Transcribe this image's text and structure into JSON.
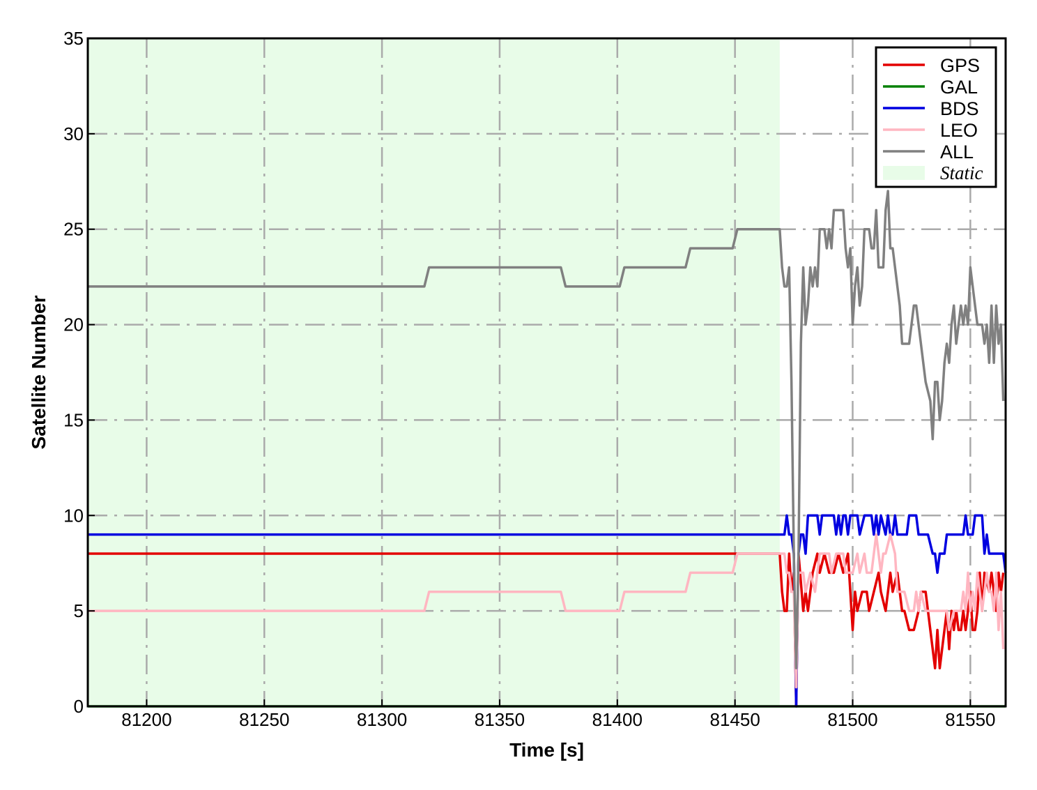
{
  "chart_data": {
    "type": "line",
    "title": "",
    "xlabel": "Time [s]",
    "ylabel": "Satellite Number",
    "xlim": [
      81175,
      81565
    ],
    "ylim": [
      0,
      35
    ],
    "xticks": [
      81200,
      81250,
      81300,
      81350,
      81400,
      81450,
      81500,
      81550
    ],
    "yticks": [
      0,
      5,
      10,
      15,
      20,
      25,
      30,
      35
    ],
    "grid": true,
    "legend_position": "top-right",
    "static_region": {
      "label": "Static",
      "x_start": 81175,
      "x_end": 81469,
      "color": "#e8fce8"
    },
    "series": [
      {
        "name": "GPS",
        "color": "#e30000",
        "points": [
          [
            81175,
            8
          ],
          [
            81469,
            8
          ],
          [
            81470,
            6
          ],
          [
            81471,
            5
          ],
          [
            81472,
            5
          ],
          [
            81473,
            8
          ],
          [
            81474,
            6
          ],
          [
            81475,
            7
          ],
          [
            81476,
            0
          ],
          [
            81477,
            8
          ],
          [
            81479,
            5
          ],
          [
            81480,
            6
          ],
          [
            81481,
            5
          ],
          [
            81483,
            7
          ],
          [
            81485,
            8
          ],
          [
            81486,
            7
          ],
          [
            81488,
            8
          ],
          [
            81490,
            7
          ],
          [
            81492,
            7
          ],
          [
            81494,
            8
          ],
          [
            81496,
            7
          ],
          [
            81498,
            8
          ],
          [
            81499,
            6
          ],
          [
            81500,
            4
          ],
          [
            81501,
            6
          ],
          [
            81502,
            5
          ],
          [
            81504,
            6
          ],
          [
            81506,
            6
          ],
          [
            81507,
            5
          ],
          [
            81509,
            6
          ],
          [
            81511,
            7
          ],
          [
            81512,
            6
          ],
          [
            81514,
            5
          ],
          [
            81516,
            7
          ],
          [
            81517,
            6
          ],
          [
            81519,
            7
          ],
          [
            81521,
            5
          ],
          [
            81522,
            5
          ],
          [
            81524,
            4
          ],
          [
            81526,
            4
          ],
          [
            81528,
            5
          ],
          [
            81529,
            6
          ],
          [
            81531,
            6
          ],
          [
            81532,
            5
          ],
          [
            81533,
            4
          ],
          [
            81535,
            2
          ],
          [
            81536,
            4
          ],
          [
            81537,
            2
          ],
          [
            81538,
            3
          ],
          [
            81539,
            4
          ],
          [
            81540,
            5
          ],
          [
            81541,
            3
          ],
          [
            81542,
            5
          ],
          [
            81543,
            4
          ],
          [
            81544,
            5
          ],
          [
            81545,
            4
          ],
          [
            81546,
            4
          ],
          [
            81547,
            5
          ],
          [
            81548,
            4
          ],
          [
            81550,
            6
          ],
          [
            81551,
            4
          ],
          [
            81552,
            4
          ],
          [
            81553,
            5
          ],
          [
            81554,
            7
          ],
          [
            81555,
            5
          ],
          [
            81556,
            7
          ],
          [
            81558,
            6
          ],
          [
            81559,
            7
          ],
          [
            81560,
            6
          ],
          [
            81561,
            5
          ],
          [
            81562,
            7
          ],
          [
            81563,
            6
          ],
          [
            81564,
            7
          ]
        ]
      },
      {
        "name": "GAL",
        "color": "#008000",
        "points": [
          [
            81175,
            0
          ],
          [
            81565,
            0
          ]
        ]
      },
      {
        "name": "BDS",
        "color": "#0000e0",
        "points": [
          [
            81175,
            9
          ],
          [
            81471,
            9
          ],
          [
            81472,
            10
          ],
          [
            81473,
            9
          ],
          [
            81474,
            9
          ],
          [
            81475,
            8
          ],
          [
            81476,
            0
          ],
          [
            81477,
            8
          ],
          [
            81478,
            9
          ],
          [
            81479,
            9
          ],
          [
            81480,
            8
          ],
          [
            81481,
            10
          ],
          [
            81485,
            10
          ],
          [
            81486,
            9
          ],
          [
            81487,
            10
          ],
          [
            81492,
            10
          ],
          [
            81493,
            9
          ],
          [
            81494,
            10
          ],
          [
            81495,
            9
          ],
          [
            81496,
            10
          ],
          [
            81497,
            10
          ],
          [
            81498,
            9
          ],
          [
            81499,
            10
          ],
          [
            81502,
            10
          ],
          [
            81503,
            9
          ],
          [
            81505,
            10
          ],
          [
            81508,
            10
          ],
          [
            81509,
            9
          ],
          [
            81510,
            10
          ],
          [
            81511,
            9
          ],
          [
            81512,
            10
          ],
          [
            81514,
            9
          ],
          [
            81515,
            10
          ],
          [
            81516,
            9
          ],
          [
            81517,
            9
          ],
          [
            81518,
            10
          ],
          [
            81519,
            9
          ],
          [
            81523,
            9
          ],
          [
            81524,
            10
          ],
          [
            81527,
            10
          ],
          [
            81528,
            9
          ],
          [
            81532,
            9
          ],
          [
            81534,
            8
          ],
          [
            81535,
            8
          ],
          [
            81536,
            7
          ],
          [
            81537,
            8
          ],
          [
            81539,
            8
          ],
          [
            81540,
            9
          ],
          [
            81547,
            9
          ],
          [
            81548,
            10
          ],
          [
            81549,
            9
          ],
          [
            81551,
            9
          ],
          [
            81552,
            10
          ],
          [
            81555,
            10
          ],
          [
            81556,
            8
          ],
          [
            81557,
            9
          ],
          [
            81558,
            8
          ],
          [
            81564,
            8
          ],
          [
            81565,
            7
          ]
        ]
      },
      {
        "name": "LEO",
        "color": "#ffb6c1",
        "points": [
          [
            81175,
            5
          ],
          [
            81318,
            5
          ],
          [
            81320,
            6
          ],
          [
            81376,
            6
          ],
          [
            81378,
            5
          ],
          [
            81401,
            5
          ],
          [
            81403,
            6
          ],
          [
            81429,
            6
          ],
          [
            81431,
            7
          ],
          [
            81449,
            7
          ],
          [
            81451,
            8
          ],
          [
            81471,
            8
          ],
          [
            81472,
            7
          ],
          [
            81473,
            7
          ],
          [
            81474,
            6
          ],
          [
            81475,
            6
          ],
          [
            81476,
            1
          ],
          [
            81477,
            7
          ],
          [
            81479,
            7
          ],
          [
            81480,
            6
          ],
          [
            81482,
            7
          ],
          [
            81484,
            6
          ],
          [
            81486,
            8
          ],
          [
            81490,
            8
          ],
          [
            81491,
            7
          ],
          [
            81493,
            8
          ],
          [
            81496,
            8
          ],
          [
            81497,
            7
          ],
          [
            81500,
            7
          ],
          [
            81502,
            8
          ],
          [
            81503,
            7
          ],
          [
            81505,
            8
          ],
          [
            81506,
            7
          ],
          [
            81508,
            7
          ],
          [
            81509,
            8
          ],
          [
            81510,
            9
          ],
          [
            81511,
            8
          ],
          [
            81512,
            7
          ],
          [
            81513,
            8
          ],
          [
            81514,
            8
          ],
          [
            81516,
            9
          ],
          [
            81518,
            8
          ],
          [
            81519,
            6
          ],
          [
            81521,
            6
          ],
          [
            81522,
            6
          ],
          [
            81524,
            5
          ],
          [
            81526,
            5
          ],
          [
            81527,
            6
          ],
          [
            81528,
            5
          ],
          [
            81529,
            6
          ],
          [
            81531,
            5
          ],
          [
            81533,
            5
          ],
          [
            81536,
            5
          ],
          [
            81537,
            5
          ],
          [
            81540,
            5
          ],
          [
            81541,
            4
          ],
          [
            81543,
            5
          ],
          [
            81546,
            5
          ],
          [
            81547,
            6
          ],
          [
            81548,
            5
          ],
          [
            81549,
            7
          ],
          [
            81550,
            5
          ],
          [
            81551,
            6
          ],
          [
            81552,
            5
          ],
          [
            81553,
            7
          ],
          [
            81554,
            6
          ],
          [
            81555,
            5
          ],
          [
            81556,
            6
          ],
          [
            81557,
            7
          ],
          [
            81558,
            6
          ],
          [
            81559,
            6
          ],
          [
            81560,
            5
          ],
          [
            81561,
            7
          ],
          [
            81562,
            4
          ],
          [
            81563,
            6
          ],
          [
            81564,
            3
          ]
        ]
      },
      {
        "name": "ALL",
        "color": "#808080",
        "points": [
          [
            81175,
            22
          ],
          [
            81318,
            22
          ],
          [
            81320,
            23
          ],
          [
            81376,
            23
          ],
          [
            81378,
            22
          ],
          [
            81401,
            22
          ],
          [
            81403,
            23
          ],
          [
            81429,
            23
          ],
          [
            81431,
            24
          ],
          [
            81449,
            24
          ],
          [
            81451,
            25
          ],
          [
            81469,
            25
          ],
          [
            81470,
            23
          ],
          [
            81471,
            22
          ],
          [
            81472,
            22
          ],
          [
            81473,
            23
          ],
          [
            81474,
            17
          ],
          [
            81475,
            8
          ],
          [
            81476,
            2
          ],
          [
            81477,
            8
          ],
          [
            81478,
            19
          ],
          [
            81479,
            23
          ],
          [
            81480,
            20
          ],
          [
            81481,
            21
          ],
          [
            81482,
            23
          ],
          [
            81483,
            22
          ],
          [
            81484,
            23
          ],
          [
            81485,
            22
          ],
          [
            81486,
            25
          ],
          [
            81488,
            25
          ],
          [
            81489,
            24
          ],
          [
            81490,
            25
          ],
          [
            81491,
            24
          ],
          [
            81492,
            26
          ],
          [
            81496,
            26
          ],
          [
            81497,
            24
          ],
          [
            81498,
            23
          ],
          [
            81499,
            24
          ],
          [
            81500,
            20
          ],
          [
            81501,
            22
          ],
          [
            81502,
            23
          ],
          [
            81503,
            21
          ],
          [
            81504,
            22
          ],
          [
            81505,
            25
          ],
          [
            81507,
            25
          ],
          [
            81508,
            24
          ],
          [
            81509,
            24
          ],
          [
            81510,
            26
          ],
          [
            81511,
            23
          ],
          [
            81513,
            23
          ],
          [
            81514,
            26
          ],
          [
            81515,
            27
          ],
          [
            81516,
            24
          ],
          [
            81517,
            24
          ],
          [
            81518,
            23
          ],
          [
            81519,
            22
          ],
          [
            81520,
            21
          ],
          [
            81521,
            19
          ],
          [
            81524,
            19
          ],
          [
            81525,
            20
          ],
          [
            81526,
            21
          ],
          [
            81527,
            21
          ],
          [
            81528,
            20
          ],
          [
            81529,
            19
          ],
          [
            81531,
            17
          ],
          [
            81533,
            16
          ],
          [
            81534,
            14
          ],
          [
            81535,
            17
          ],
          [
            81536,
            17
          ],
          [
            81537,
            15
          ],
          [
            81538,
            16
          ],
          [
            81539,
            18
          ],
          [
            81540,
            19
          ],
          [
            81541,
            18
          ],
          [
            81542,
            20
          ],
          [
            81543,
            21
          ],
          [
            81544,
            19
          ],
          [
            81545,
            20
          ],
          [
            81546,
            21
          ],
          [
            81547,
            20
          ],
          [
            81548,
            21
          ],
          [
            81549,
            20
          ],
          [
            81550,
            23
          ],
          [
            81551,
            22
          ],
          [
            81552,
            21
          ],
          [
            81553,
            20
          ],
          [
            81554,
            20
          ],
          [
            81555,
            20
          ],
          [
            81556,
            19
          ],
          [
            81557,
            20
          ],
          [
            81558,
            18
          ],
          [
            81559,
            21
          ],
          [
            81560,
            18
          ],
          [
            81561,
            21
          ],
          [
            81562,
            19
          ],
          [
            81563,
            20
          ],
          [
            81564,
            16
          ]
        ]
      }
    ]
  }
}
